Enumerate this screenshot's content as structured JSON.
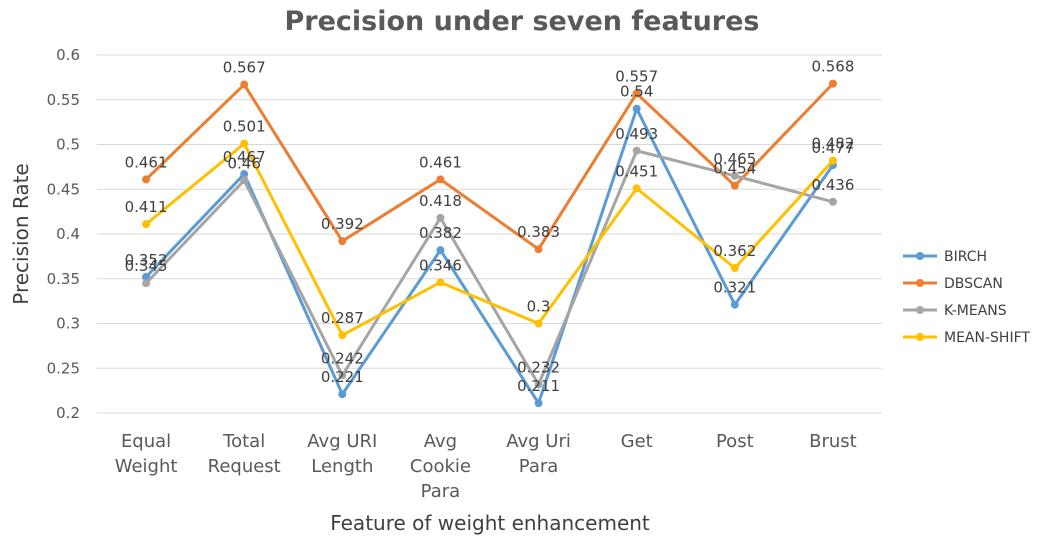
{
  "chart_data": {
    "type": "line",
    "title": "Precision under seven features",
    "xlabel": "Feature of weight enhancement",
    "ylabel": "Precision Rate",
    "ylim": [
      0.2,
      0.6
    ],
    "yticks": [
      "0.2",
      "0.25",
      "0.3",
      "0.35",
      "0.4",
      "0.45",
      "0.5",
      "0.55",
      "0.6"
    ],
    "grid": true,
    "legend_position": "right",
    "categories": [
      [
        "Equal",
        "Weight"
      ],
      [
        "Total",
        "Request"
      ],
      [
        "Avg URI",
        "Length"
      ],
      [
        "Avg",
        "Cookie",
        "Para"
      ],
      [
        "Avg Uri",
        "Para"
      ],
      [
        "Get"
      ],
      [
        "Post"
      ],
      [
        "Brust"
      ]
    ],
    "series": [
      {
        "name": "BIRCH",
        "color": "#5b9bd5",
        "values": [
          0.352,
          0.467,
          0.221,
          0.382,
          0.211,
          0.54,
          0.321,
          0.477
        ]
      },
      {
        "name": "DBSCAN",
        "color": "#ed7d31",
        "values": [
          0.461,
          0.567,
          0.392,
          0.461,
          0.383,
          0.557,
          0.454,
          0.568
        ]
      },
      {
        "name": "K-MEANS",
        "color": "#a5a5a5",
        "values": [
          0.345,
          0.46,
          0.242,
          0.418,
          0.232,
          0.493,
          0.465,
          0.436
        ]
      },
      {
        "name": "MEAN-SHIFT",
        "color": "#ffc000",
        "values": [
          0.411,
          0.501,
          0.287,
          0.346,
          0.3,
          0.451,
          0.362,
          0.482
        ]
      }
    ]
  }
}
